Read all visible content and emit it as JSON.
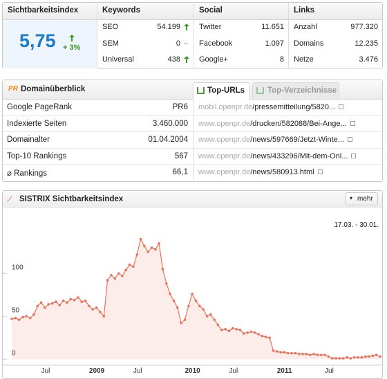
{
  "summary": {
    "visibility": {
      "title": "Sichtbarkeitsindex",
      "value": "5,75",
      "change": "+ 3%"
    },
    "keywords": {
      "title": "Keywords",
      "rows": [
        [
          "SEO",
          "54.199"
        ],
        [
          "SEM",
          "0"
        ],
        [
          "Universal",
          "438"
        ]
      ]
    },
    "social": {
      "title": "Social",
      "rows": [
        [
          "Twitter",
          "11.651"
        ],
        [
          "Facebook",
          "1.097"
        ],
        [
          "Google+",
          "8"
        ]
      ]
    },
    "links": {
      "title": "Links",
      "rows": [
        [
          "Anzahl",
          "977.320"
        ],
        [
          "Domains",
          "12.235"
        ],
        [
          "Netze",
          "3.476"
        ]
      ]
    }
  },
  "domain": {
    "title": "Domainüberblick",
    "tabs": [
      "Top-URLs",
      "Top-Verzeichnisse"
    ],
    "rows": [
      [
        "Google PageRank",
        "PR6"
      ],
      [
        "Indexierte Seiten",
        "3.460.000"
      ],
      [
        "Domainalter",
        "01.04.2004"
      ],
      [
        "Top-10 Rankings",
        "567"
      ],
      [
        "⌀ Rankings",
        "66,1"
      ]
    ],
    "urls": [
      {
        "host": "mobil.openpr.de",
        "path": "/pressemitteilung/5820..."
      },
      {
        "host": "www.openpr.de",
        "path": "/drucken/582088/Bei-Ange..."
      },
      {
        "host": "www.openpr.de",
        "path": "/news/597669/Jetzt-Winte..."
      },
      {
        "host": "www.openpr.de",
        "path": "/news/433296/Mit-dem-Onl..."
      },
      {
        "host": "www.openpr.de",
        "path": "/news/580913.html"
      }
    ]
  },
  "chart_panel": {
    "button": "mehr",
    "range": "17.03. - 30.01."
  },
  "chart_data": {
    "type": "line",
    "title": "SISTRIX Sichtbarkeitsindex",
    "color": "#e8735a",
    "categories": [
      null,
      null,
      null,
      null,
      null,
      null,
      null,
      null,
      "Jul",
      null,
      null,
      null,
      null,
      null,
      null,
      null,
      null,
      null,
      null,
      null,
      null,
      "2009",
      null,
      null,
      null,
      null,
      null,
      null,
      null,
      null,
      null,
      null,
      null,
      "Jul",
      null,
      null,
      null,
      null,
      null,
      null,
      null,
      null,
      null,
      null,
      null,
      null,
      null,
      "2010",
      null,
      null,
      null,
      null,
      null,
      null,
      null,
      null,
      null,
      null,
      null,
      "Jul",
      null,
      null,
      null,
      null,
      null,
      null,
      null,
      null,
      null,
      null,
      null,
      null,
      "2011",
      null,
      null,
      null,
      null,
      null,
      null,
      null,
      null,
      null,
      null,
      null,
      null,
      "Jul",
      null,
      null,
      null,
      null,
      null,
      null,
      null,
      null,
      null,
      null,
      null,
      null,
      null,
      null,
      null
    ],
    "values": [
      47,
      48,
      46,
      49,
      50,
      48,
      52,
      62,
      66,
      60,
      64,
      65,
      67,
      63,
      68,
      66,
      70,
      69,
      72,
      67,
      68,
      62,
      58,
      60,
      55,
      50,
      92,
      98,
      94,
      100,
      97,
      104,
      110,
      108,
      122,
      140,
      132,
      125,
      130,
      128,
      135,
      105,
      88,
      76,
      68,
      60,
      42,
      46,
      62,
      76,
      68,
      62,
      58,
      50,
      52,
      46,
      40,
      34,
      35,
      33,
      36,
      35,
      34,
      30,
      31,
      32,
      31,
      29,
      27,
      26,
      25,
      10,
      9,
      8,
      8,
      7,
      7,
      7,
      6,
      6,
      6,
      5,
      6,
      5,
      5,
      5,
      3,
      1,
      1,
      1,
      1,
      2,
      1,
      2,
      2,
      2,
      3,
      3,
      4,
      5,
      3
    ],
    "ylim": [
      -7,
      172
    ],
    "yticks": [
      0,
      50,
      100
    ],
    "grid": false
  }
}
